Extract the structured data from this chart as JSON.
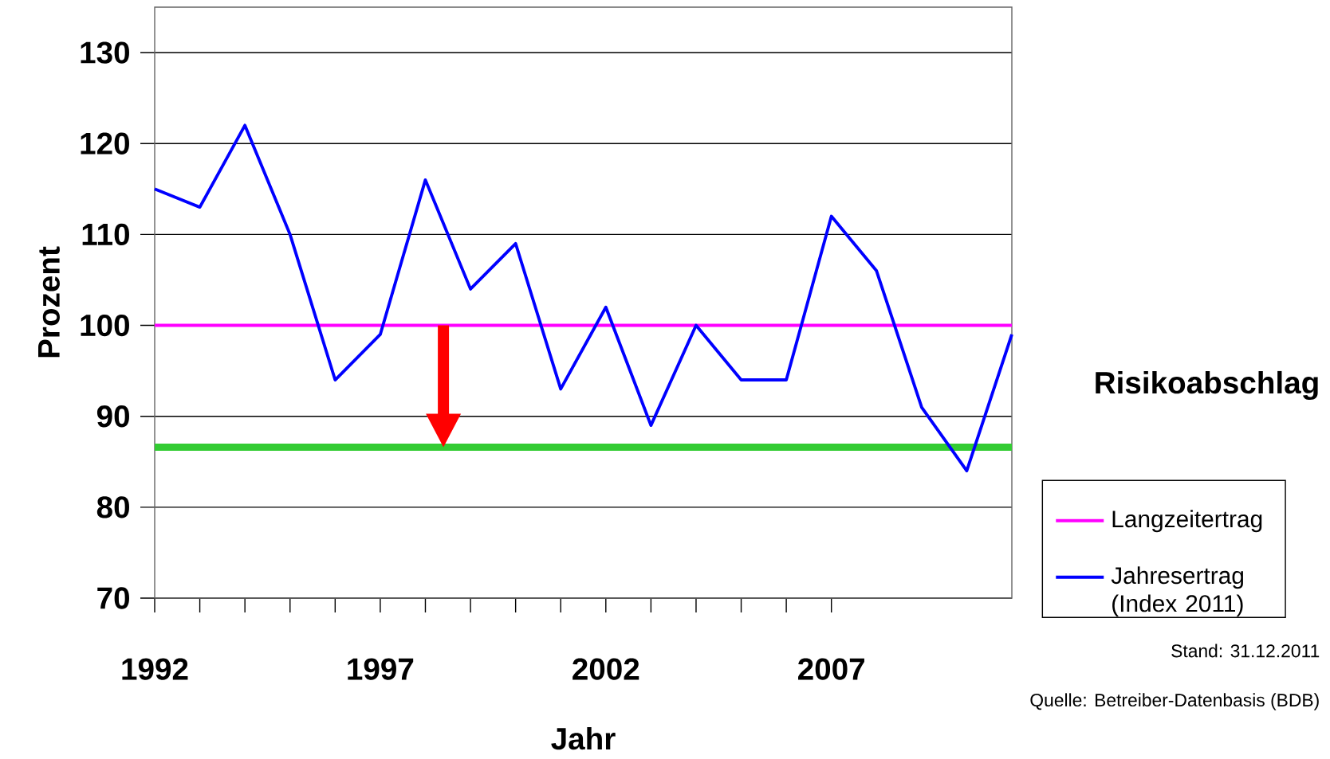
{
  "chart_data": {
    "type": "line",
    "xlabel": "Jahr",
    "ylabel": "Prozent",
    "xlim": [
      1992,
      2011
    ],
    "ylim": [
      70,
      135
    ],
    "xticks": [
      1992,
      1997,
      2002,
      2007
    ],
    "yticks": [
      70,
      80,
      90,
      100,
      110,
      120,
      130
    ],
    "series": [
      {
        "name": "Langzeitertrag",
        "color": "#ff00ff",
        "x": [
          1992,
          2011
        ],
        "values": [
          100,
          100
        ]
      },
      {
        "name": "Jahresertrag (Index 2011)",
        "color": "#0000ff",
        "x": [
          1992,
          1993,
          1994,
          1995,
          1996,
          1997,
          1998,
          1999,
          2000,
          2001,
          2002,
          2003,
          2004,
          2005,
          2006,
          2007,
          2008,
          2009,
          2010,
          2011
        ],
        "values": [
          115,
          113,
          122,
          110,
          94,
          99,
          116,
          104,
          109,
          93,
          102,
          89,
          100,
          94,
          94,
          112,
          106,
          91,
          84,
          99
        ]
      }
    ],
    "ref_lines": [
      {
        "axis": "y",
        "value": 86.6,
        "color": "#33cc33"
      }
    ],
    "annotations": [
      "Risikoabschlag",
      "Stand:  31.12.2011",
      "Quelle: Betreiber-Datenbasis (BDB)"
    ],
    "grid": "y",
    "legend": "right",
    "marker": "none",
    "line_style": "solid"
  }
}
